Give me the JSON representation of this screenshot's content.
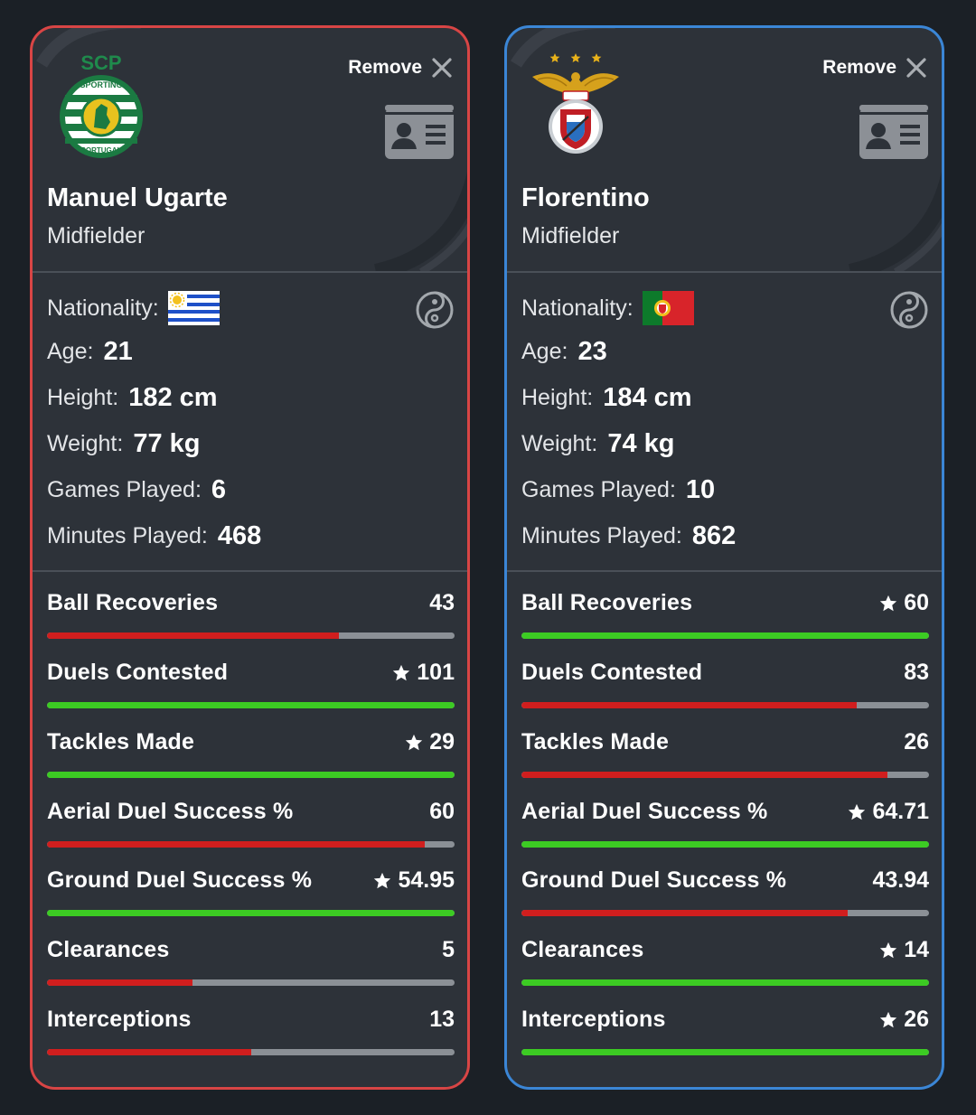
{
  "players": [
    {
      "remove_label": "Remove",
      "crest_text": [
        "SCP",
        "SPORTING",
        "PORTUGAL"
      ],
      "name": "Manuel Ugarte",
      "position": "Midfielder",
      "nationality_label": "Nationality:",
      "flag": "uruguay",
      "age_label": "Age:",
      "age": "21",
      "height_label": "Height:",
      "height": "182 cm",
      "weight_label": "Weight:",
      "weight": "77 kg",
      "games_label": "Games Played:",
      "games": "6",
      "minutes_label": "Minutes Played:",
      "minutes": "468",
      "stats": [
        {
          "label": "Ball Recoveries",
          "value": "43",
          "star": false,
          "fill": 0.717,
          "color": "#d01e1e"
        },
        {
          "label": "Duels Contested",
          "value": "101",
          "star": true,
          "fill": 1.0,
          "color": "#3ccb23"
        },
        {
          "label": "Tackles Made",
          "value": "29",
          "star": true,
          "fill": 1.0,
          "color": "#3ccb23"
        },
        {
          "label": "Aerial Duel Success %",
          "value": "60",
          "star": false,
          "fill": 0.927,
          "color": "#d01e1e"
        },
        {
          "label": "Ground Duel Success %",
          "value": "54.95",
          "star": true,
          "fill": 1.0,
          "color": "#3ccb23"
        },
        {
          "label": "Clearances",
          "value": "5",
          "star": false,
          "fill": 0.357,
          "color": "#d01e1e"
        },
        {
          "label": "Interceptions",
          "value": "13",
          "star": false,
          "fill": 0.5,
          "color": "#d01e1e"
        }
      ]
    },
    {
      "remove_label": "Remove",
      "crest_text": [],
      "name": "Florentino",
      "position": "Midfielder",
      "nationality_label": "Nationality:",
      "flag": "portugal",
      "age_label": "Age:",
      "age": "23",
      "height_label": "Height:",
      "height": "184 cm",
      "weight_label": "Weight:",
      "weight": "74 kg",
      "games_label": "Games Played:",
      "games": "10",
      "minutes_label": "Minutes Played:",
      "minutes": "862",
      "stats": [
        {
          "label": "Ball Recoveries",
          "value": "60",
          "star": true,
          "fill": 1.0,
          "color": "#3ccb23"
        },
        {
          "label": "Duels Contested",
          "value": "83",
          "star": false,
          "fill": 0.822,
          "color": "#d01e1e"
        },
        {
          "label": "Tackles Made",
          "value": "26",
          "star": false,
          "fill": 0.897,
          "color": "#d01e1e"
        },
        {
          "label": "Aerial Duel Success %",
          "value": "64.71",
          "star": true,
          "fill": 1.0,
          "color": "#3ccb23"
        },
        {
          "label": "Ground Duel Success %",
          "value": "43.94",
          "star": false,
          "fill": 0.8,
          "color": "#d01e1e"
        },
        {
          "label": "Clearances",
          "value": "14",
          "star": true,
          "fill": 1.0,
          "color": "#3ccb23"
        },
        {
          "label": "Interceptions",
          "value": "26",
          "star": true,
          "fill": 1.0,
          "color": "#3ccb23"
        }
      ]
    }
  ],
  "colors": {
    "left_border": "#d84545",
    "right_border": "#3b86d6",
    "better": "#3ccb23",
    "worse": "#d01e1e",
    "track": "#8b9096",
    "card_bg": "#2d3239",
    "page_bg": "#1b2026"
  },
  "icons": [
    "close-icon",
    "id-card-icon",
    "compare-icon",
    "star-icon",
    "sporting-crest",
    "benfica-crest",
    "uruguay-flag",
    "portugal-flag"
  ]
}
